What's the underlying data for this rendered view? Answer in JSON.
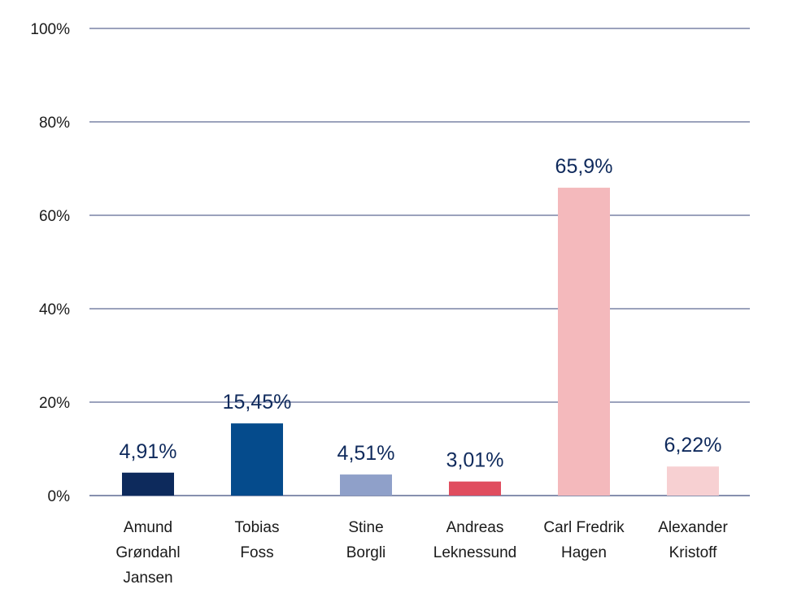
{
  "chart_data": {
    "type": "bar",
    "categories": [
      "Amund Grøndahl Jansen",
      "Tobias Foss",
      "Stine Borgli",
      "Andreas Leknessund",
      "Carl Fredrik Hagen",
      "Alexander Kristoff"
    ],
    "category_lines": [
      [
        "Amund",
        "Grøndahl",
        "Jansen"
      ],
      [
        "Tobias",
        "Foss"
      ],
      [
        "Stine",
        "Borgli"
      ],
      [
        "Andreas",
        "Leknessund"
      ],
      [
        "Carl Fredrik",
        "Hagen"
      ],
      [
        "Alexander",
        "Kristoff"
      ]
    ],
    "values": [
      4.91,
      15.45,
      4.51,
      3.01,
      65.9,
      6.22
    ],
    "data_labels": [
      "4,91%",
      "15,45%",
      "4,51%",
      "3,01%",
      "65,9%",
      "6,22%"
    ],
    "colors": [
      "#0d2a5c",
      "#054b8c",
      "#8fa0c9",
      "#e04d5f",
      "#f4b9bc",
      "#f7d0d2"
    ],
    "ylim": [
      0,
      100
    ],
    "yticks": [
      0,
      20,
      40,
      60,
      80,
      100
    ],
    "ytick_labels": [
      "0%",
      "20%",
      "40%",
      "60%",
      "80%",
      "100%"
    ],
    "grid": true,
    "title": "",
    "xlabel": "",
    "ylabel": ""
  }
}
